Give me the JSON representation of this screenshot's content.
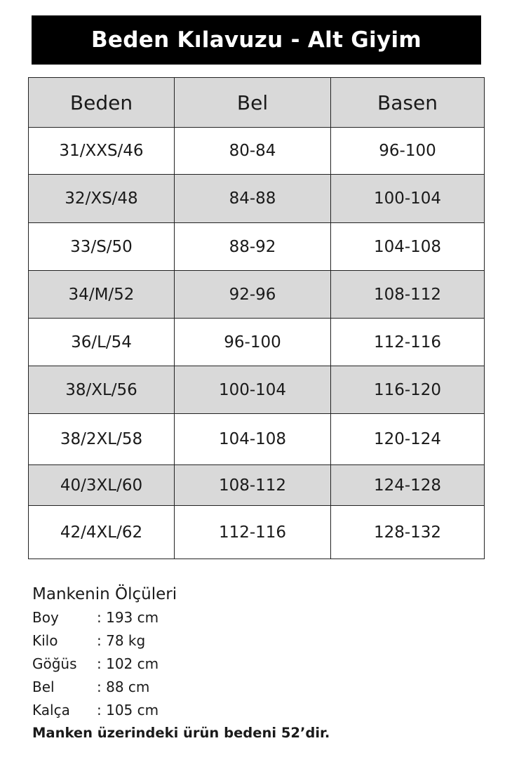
{
  "title": "Beden Kılavuzu - Alt Giyim",
  "table": {
    "headers": [
      "Beden",
      "Bel",
      "Basen"
    ],
    "rows": [
      [
        "31/XXS/46",
        "80-84",
        "96-100"
      ],
      [
        "32/XS/48",
        "84-88",
        "100-104"
      ],
      [
        "33/S/50",
        "88-92",
        "104-108"
      ],
      [
        "34/M/52",
        "92-96",
        "108-112"
      ],
      [
        "36/L/54",
        "96-100",
        "112-116"
      ],
      [
        "38/XL/56",
        "100-104",
        "116-120"
      ],
      [
        "38/2XL/58",
        "104-108",
        "120-124"
      ],
      [
        "40/3XL/60",
        "108-112",
        "124-128"
      ],
      [
        "42/4XL/62",
        "112-116",
        "128-132"
      ]
    ]
  },
  "model": {
    "heading": "Mankenin Ölçüleri",
    "items": [
      {
        "label": "Boy",
        "value": ": 193 cm"
      },
      {
        "label": "Kilo",
        "value": ": 78 kg"
      },
      {
        "label": "Göğüs",
        "value": ": 102 cm"
      },
      {
        "label": "Bel",
        "value": ": 88 cm"
      },
      {
        "label": "Kalça",
        "value": ": 105 cm"
      }
    ],
    "footer": "Manken üzerindeki ürün bedeni  52’dir."
  },
  "colors": {
    "title_bg": "#000000",
    "row_gray": "#d9d9d9"
  }
}
